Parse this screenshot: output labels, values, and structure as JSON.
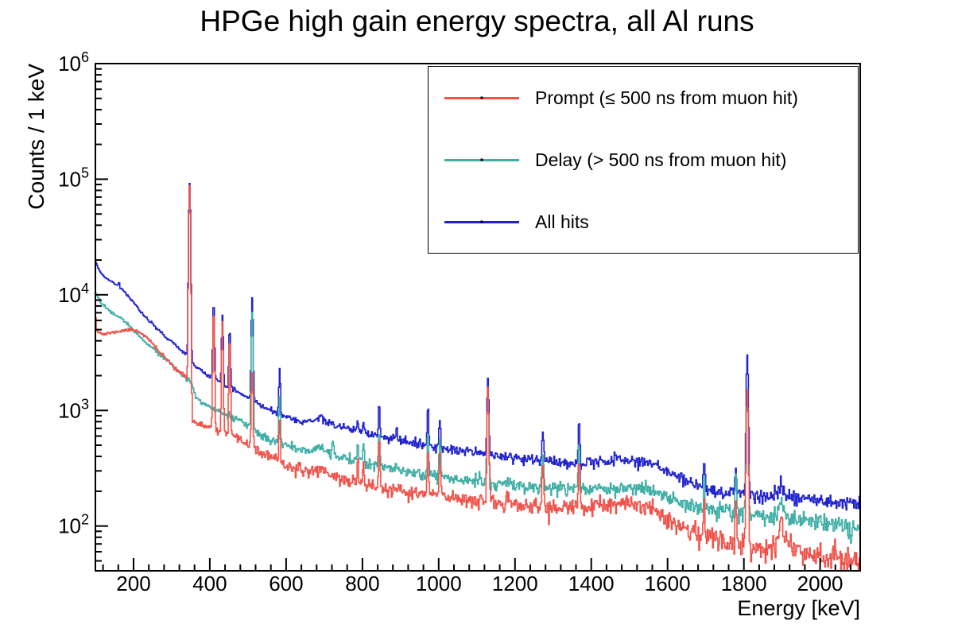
{
  "chart_data": {
    "type": "line",
    "title": "HPGe high gain energy spectra, all Al runs",
    "xlabel": "Energy [keV]",
    "ylabel": "Counts / 1 keV",
    "x_range": [
      100,
      2105
    ],
    "y_range": [
      41,
      1000000
    ],
    "y_scale": "log",
    "grid": false,
    "legend_position": "top-right",
    "axis_color": "#000000",
    "x_major_ticks": [
      200,
      400,
      600,
      800,
      1000,
      1200,
      1400,
      1600,
      1800,
      2000
    ],
    "x_minor_step": 40,
    "y_decade_exponents": [
      2,
      3,
      4,
      5,
      6
    ],
    "bin_width_kev": 2,
    "series": [
      {
        "name": "Prompt (≤ 500 ns from muon hit)",
        "color": "#f0524a",
        "seed": 11,
        "continuum": [
          [
            100,
            7300
          ],
          [
            103,
            5000
          ],
          [
            112,
            4700
          ],
          [
            122,
            4550
          ],
          [
            135,
            4650
          ],
          [
            150,
            4750
          ],
          [
            165,
            4850
          ],
          [
            180,
            4950
          ],
          [
            195,
            4980
          ],
          [
            210,
            4900
          ],
          [
            225,
            4550
          ],
          [
            240,
            4100
          ],
          [
            255,
            3600
          ],
          [
            270,
            3150
          ],
          [
            285,
            2800
          ],
          [
            300,
            2500
          ],
          [
            315,
            2250
          ],
          [
            330,
            2020
          ],
          [
            342,
            1870
          ],
          [
            352,
            820
          ],
          [
            365,
            770
          ],
          [
            380,
            740
          ],
          [
            395,
            710
          ],
          [
            410,
            690
          ],
          [
            425,
            660
          ],
          [
            440,
            630
          ],
          [
            452,
            610
          ],
          [
            465,
            575
          ],
          [
            480,
            550
          ],
          [
            495,
            530
          ],
          [
            508,
            500
          ],
          [
            518,
            455
          ],
          [
            530,
            435
          ],
          [
            545,
            415
          ],
          [
            560,
            395
          ],
          [
            580,
            365
          ],
          [
            600,
            335
          ],
          [
            630,
            305
          ],
          [
            660,
            298
          ],
          [
            678,
            305
          ],
          [
            690,
            315
          ],
          [
            702,
            300
          ],
          [
            720,
            275
          ],
          [
            740,
            258
          ],
          [
            780,
            238
          ],
          [
            820,
            222
          ],
          [
            860,
            208
          ],
          [
            900,
            197
          ],
          [
            950,
            190
          ],
          [
            1000,
            185
          ],
          [
            1060,
            174
          ],
          [
            1120,
            164
          ],
          [
            1180,
            156
          ],
          [
            1240,
            149
          ],
          [
            1300,
            144
          ],
          [
            1360,
            143
          ],
          [
            1420,
            149
          ],
          [
            1480,
            154
          ],
          [
            1540,
            151
          ],
          [
            1580,
            133
          ],
          [
            1620,
            106
          ],
          [
            1660,
            91
          ],
          [
            1700,
            81
          ],
          [
            1740,
            75
          ],
          [
            1780,
            71
          ],
          [
            1820,
            67
          ],
          [
            1855,
            64
          ],
          [
            1880,
            70
          ],
          [
            1895,
            93
          ],
          [
            1912,
            72
          ],
          [
            1950,
            61
          ],
          [
            2000,
            57
          ],
          [
            2050,
            53
          ],
          [
            2105,
            50
          ]
        ],
        "peaks": [
          [
            347,
            88000,
            1.9
          ],
          [
            410,
            7600,
            1.7
          ],
          [
            433,
            6000,
            1.7
          ],
          [
            452,
            4300,
            1.7
          ],
          [
            511,
            2100,
            1.9
          ],
          [
            583,
            820,
            1.7
          ],
          [
            788,
            395,
            1.7
          ],
          [
            803,
            375,
            1.7
          ],
          [
            844,
            570,
            1.7
          ],
          [
            972,
            470,
            1.7
          ],
          [
            1003,
            415,
            1.7
          ],
          [
            1129,
            1520,
            1.9
          ],
          [
            1273,
            335,
            1.9
          ],
          [
            1368,
            365,
            1.9
          ],
          [
            1696,
            175,
            1.9
          ],
          [
            1779,
            155,
            1.9
          ],
          [
            1809,
            1500,
            2.1
          ],
          [
            1898,
            118,
            2.8
          ]
        ]
      },
      {
        "name": "Delay (> 500 ns from muon hit)",
        "color": "#3fafa5",
        "seed": 22,
        "continuum": [
          [
            100,
            10400
          ],
          [
            115,
            8600
          ],
          [
            130,
            7600
          ],
          [
            145,
            7000
          ],
          [
            160,
            6500
          ],
          [
            175,
            6000
          ],
          [
            190,
            5400
          ],
          [
            205,
            4800
          ],
          [
            220,
            4250
          ],
          [
            240,
            3680
          ],
          [
            260,
            3220
          ],
          [
            280,
            2820
          ],
          [
            300,
            2470
          ],
          [
            320,
            2170
          ],
          [
            340,
            1920
          ],
          [
            352,
            1750
          ],
          [
            362,
            1300
          ],
          [
            380,
            1170
          ],
          [
            400,
            1060
          ],
          [
            420,
            990
          ],
          [
            440,
            925
          ],
          [
            460,
            865
          ],
          [
            480,
            805
          ],
          [
            500,
            750
          ],
          [
            515,
            655
          ],
          [
            530,
            615
          ],
          [
            545,
            585
          ],
          [
            560,
            560
          ],
          [
            585,
            525
          ],
          [
            610,
            485
          ],
          [
            640,
            455
          ],
          [
            670,
            455
          ],
          [
            690,
            492
          ],
          [
            705,
            450
          ],
          [
            720,
            420
          ],
          [
            740,
            402
          ],
          [
            780,
            368
          ],
          [
            820,
            342
          ],
          [
            860,
            318
          ],
          [
            900,
            300
          ],
          [
            950,
            282
          ],
          [
            1000,
            270
          ],
          [
            1060,
            254
          ],
          [
            1120,
            242
          ],
          [
            1180,
            230
          ],
          [
            1240,
            220
          ],
          [
            1300,
            212
          ],
          [
            1360,
            210
          ],
          [
            1420,
            214
          ],
          [
            1480,
            217
          ],
          [
            1540,
            210
          ],
          [
            1580,
            187
          ],
          [
            1620,
            162
          ],
          [
            1660,
            150
          ],
          [
            1700,
            140
          ],
          [
            1740,
            134
          ],
          [
            1780,
            130
          ],
          [
            1820,
            124
          ],
          [
            1860,
            119
          ],
          [
            1882,
            124
          ],
          [
            1895,
            140
          ],
          [
            1915,
            120
          ],
          [
            1960,
            112
          ],
          [
            2000,
            107
          ],
          [
            2050,
            101
          ],
          [
            2105,
            96
          ]
        ],
        "peaks": [
          [
            511,
            7000,
            1.9
          ],
          [
            583,
            1280,
            1.7
          ],
          [
            723,
            560,
            1.7
          ],
          [
            788,
            530,
            1.7
          ],
          [
            803,
            500,
            1.7
          ],
          [
            844,
            700,
            1.7
          ],
          [
            972,
            650,
            1.7
          ],
          [
            1003,
            570,
            1.7
          ],
          [
            1129,
            1450,
            1.9
          ],
          [
            1273,
            445,
            1.9
          ],
          [
            1368,
            510,
            1.9
          ],
          [
            1696,
            265,
            1.9
          ],
          [
            1779,
            285,
            1.9
          ],
          [
            1809,
            1540,
            2.1
          ],
          [
            1898,
            165,
            2.8
          ]
        ]
      },
      {
        "name": "All hits",
        "color": "#2022ce",
        "seed": 33,
        "continuum": [
          [
            100,
            19500
          ],
          [
            112,
            15800
          ],
          [
            125,
            14200
          ],
          [
            140,
            13100
          ],
          [
            155,
            12300
          ],
          [
            170,
            11100
          ],
          [
            185,
            9900
          ],
          [
            200,
            8600
          ],
          [
            215,
            7400
          ],
          [
            230,
            6500
          ],
          [
            245,
            5800
          ],
          [
            260,
            5150
          ],
          [
            280,
            4450
          ],
          [
            300,
            3950
          ],
          [
            320,
            3450
          ],
          [
            340,
            3050
          ],
          [
            352,
            2600
          ],
          [
            370,
            2300
          ],
          [
            390,
            2050
          ],
          [
            410,
            1900
          ],
          [
            430,
            1730
          ],
          [
            450,
            1600
          ],
          [
            470,
            1470
          ],
          [
            490,
            1350
          ],
          [
            508,
            1280
          ],
          [
            525,
            1150
          ],
          [
            545,
            1060
          ],
          [
            565,
            985
          ],
          [
            585,
            925
          ],
          [
            610,
            860
          ],
          [
            640,
            805
          ],
          [
            670,
            805
          ],
          [
            690,
            880
          ],
          [
            705,
            800
          ],
          [
            720,
            760
          ],
          [
            740,
            725
          ],
          [
            780,
            668
          ],
          [
            820,
            622
          ],
          [
            860,
            580
          ],
          [
            900,
            545
          ],
          [
            950,
            508
          ],
          [
            1000,
            478
          ],
          [
            1060,
            448
          ],
          [
            1120,
            420
          ],
          [
            1180,
            396
          ],
          [
            1240,
            376
          ],
          [
            1300,
            358
          ],
          [
            1360,
            352
          ],
          [
            1420,
            362
          ],
          [
            1480,
            370
          ],
          [
            1540,
            358
          ],
          [
            1580,
            322
          ],
          [
            1620,
            276
          ],
          [
            1650,
            246
          ],
          [
            1680,
            222
          ],
          [
            1710,
            202
          ],
          [
            1740,
            194
          ],
          [
            1780,
            190
          ],
          [
            1820,
            182
          ],
          [
            1860,
            174
          ],
          [
            1882,
            182
          ],
          [
            1895,
            208
          ],
          [
            1915,
            182
          ],
          [
            1960,
            172
          ],
          [
            2000,
            166
          ],
          [
            2050,
            161
          ],
          [
            2105,
            156
          ]
        ],
        "peaks": [
          [
            162,
            12900,
            1.4
          ],
          [
            190,
            8400,
            1.4
          ],
          [
            347,
            92000,
            1.9
          ],
          [
            410,
            8700,
            1.7
          ],
          [
            433,
            6700,
            1.7
          ],
          [
            452,
            5100,
            1.7
          ],
          [
            511,
            9600,
            1.9
          ],
          [
            583,
            2330,
            1.7
          ],
          [
            723,
            840,
            1.7
          ],
          [
            788,
            820,
            1.7
          ],
          [
            803,
            780,
            1.7
          ],
          [
            844,
            1160,
            1.7
          ],
          [
            890,
            710,
            1.7
          ],
          [
            972,
            1060,
            1.7
          ],
          [
            1003,
            890,
            1.7
          ],
          [
            1129,
            1870,
            1.9
          ],
          [
            1273,
            690,
            1.9
          ],
          [
            1368,
            830,
            1.9
          ],
          [
            1462,
            430,
            1.9
          ],
          [
            1696,
            365,
            1.9
          ],
          [
            1779,
            305,
            1.9
          ],
          [
            1809,
            3050,
            2.1
          ],
          [
            1898,
            245,
            2.8
          ]
        ]
      }
    ]
  }
}
